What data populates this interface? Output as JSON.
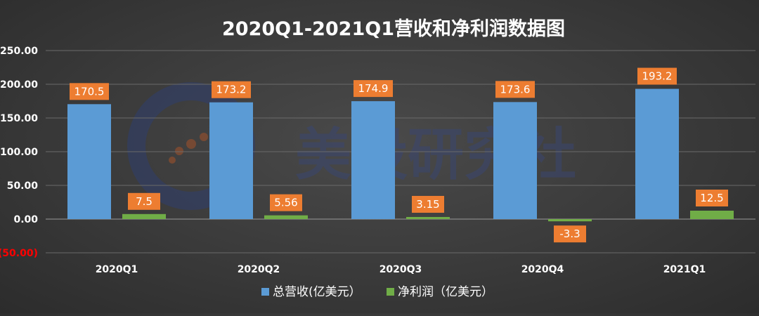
{
  "watermark": {
    "text": "美股研究社"
  },
  "chart_data": {
    "type": "bar",
    "title": "2020Q1-2021Q1营收和净利润数据图",
    "categories": [
      "2020Q1",
      "2020Q2",
      "2020Q3",
      "2020Q4",
      "2021Q1"
    ],
    "series": [
      {
        "name": "总营收(亿美元）",
        "color": "#5b9bd5",
        "values": [
          170.5,
          173.2,
          174.9,
          173.6,
          193.2
        ],
        "labels": [
          "170.5",
          "173.2",
          "174.9",
          "173.6",
          "193.2"
        ]
      },
      {
        "name": "净利润（亿美元）",
        "color": "#70ad47",
        "values": [
          7.5,
          5.56,
          3.15,
          -3.3,
          12.5
        ],
        "labels": [
          "7.5",
          "5.56",
          "3.15",
          "-3.3",
          "12.5"
        ]
      }
    ],
    "ylim": [
      -50,
      250
    ],
    "yticks": [
      250,
      200,
      150,
      100,
      50,
      0,
      -50
    ],
    "ytick_labels": [
      "250.00",
      "200.00",
      "150.00",
      "100.00",
      "50.00",
      "0.00",
      "(50.00)"
    ],
    "negative_tick_color": "#ff0000",
    "label_box_color": "#ed7d31",
    "grid": true,
    "legend_position": "bottom"
  }
}
